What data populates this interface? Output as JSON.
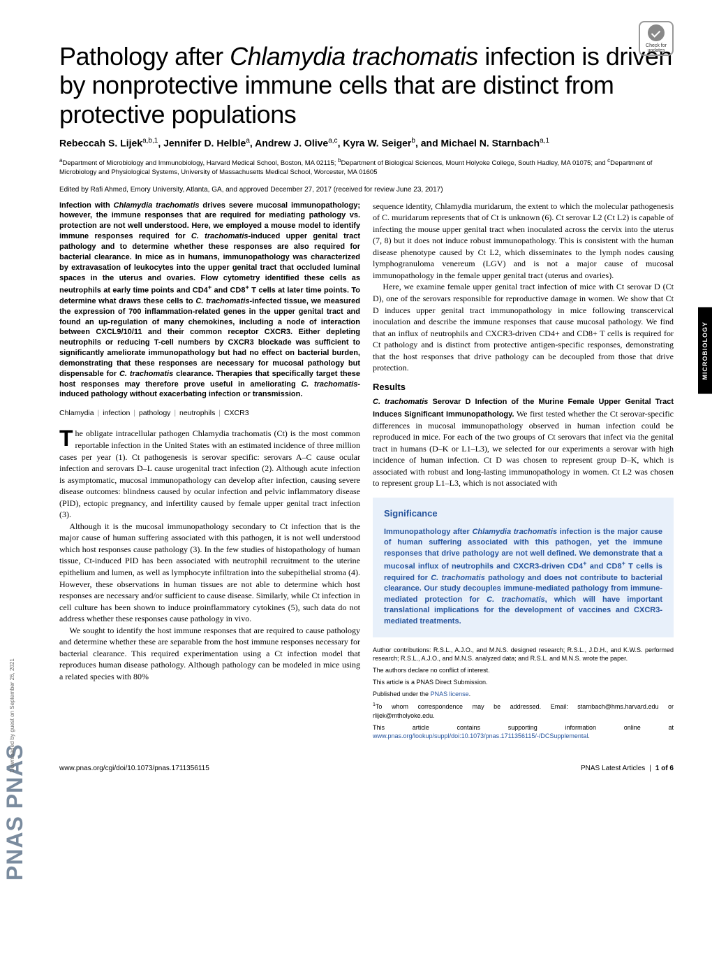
{
  "crossmark": {
    "label": "Check for updates"
  },
  "logo": {
    "text": "PNAS  PNAS"
  },
  "title": {
    "pre": "Pathology after ",
    "italic": "Chlamydia trachomatis",
    "post": " infection is driven by nonprotective immune cells that are distinct from protective populations"
  },
  "authors": {
    "list": "Rebeccah S. Lijek",
    "a1": "a,b,1",
    "n2": ", Jennifer D. Helble",
    "a2": "a",
    "n3": ", Andrew J. Olive",
    "a3": "a,c",
    "n4": ", Kyra W. Seiger",
    "a4": "b",
    "n5": ", and Michael N. Starnbach",
    "a5": "a,1"
  },
  "affiliations": {
    "a": "Department of Microbiology and Immunobiology, Harvard Medical School, Boston, MA 02115; ",
    "b": "Department of Biological Sciences, Mount Holyoke College, South Hadley, MA 01075; and ",
    "c": "Department of Microbiology and Physiological Systems, University of Massachusetts Medical School, Worcester, MA 01605"
  },
  "edited_by": "Edited by Rafi Ahmed, Emory University, Atlanta, GA, and approved December 27, 2017 (received for review June 23, 2017)",
  "abstract": {
    "text": "Infection with Chlamydia trachomatis drives severe mucosal immunopathology; however, the immune responses that are required for mediating pathology vs. protection are not well understood. Here, we employed a mouse model to identify immune responses required for C. trachomatis-induced upper genital tract pathology and to determine whether these responses are also required for bacterial clearance. In mice as in humans, immunopathology was characterized by extravasation of leukocytes into the upper genital tract that occluded luminal spaces in the uterus and ovaries. Flow cytometry identified these cells as neutrophils at early time points and CD4+ and CD8+ T cells at later time points. To determine what draws these cells to C. trachomatis-infected tissue, we measured the expression of 700 inflammation-related genes in the upper genital tract and found an up-regulation of many chemokines, including a node of interaction between CXCL9/10/11 and their common receptor CXCR3. Either depleting neutrophils or reducing T-cell numbers by CXCR3 blockade was sufficient to significantly ameliorate immunopathology but had no effect on bacterial burden, demonstrating that these responses are necessary for mucosal pathology but dispensable for C. trachomatis clearance. Therapies that specifically target these host responses may therefore prove useful in ameliorating C. trachomatis-induced pathology without exacerbating infection or transmission."
  },
  "keywords": [
    "Chlamydia",
    "infection",
    "pathology",
    "neutrophils",
    "CXCR3"
  ],
  "body": {
    "p1": "he obligate intracellular pathogen Chlamydia trachomatis (Ct) is the most common reportable infection in the United States with an estimated incidence of three million cases per year (1). Ct pathogenesis is serovar specific: serovars A–C cause ocular infection and serovars D–L cause urogenital tract infection (2). Although acute infection is asymptomatic, mucosal immunopathology can develop after infection, causing severe disease outcomes: blindness caused by ocular infection and pelvic inflammatory disease (PID), ectopic pregnancy, and infertility caused by female upper genital tract infection (3).",
    "p2": "Although it is the mucosal immunopathology secondary to Ct infection that is the major cause of human suffering associated with this pathogen, it is not well understood which host responses cause pathology (3). In the few studies of histopathology of human tissue, Ct-induced PID has been associated with neutrophil recruitment to the uterine epithelium and lumen, as well as lymphocyte infiltration into the subepithelial stroma (4). However, these observations in human tissues are not able to determine which host responses are necessary and/or sufficient to cause disease. Similarly, while Ct infection in cell culture has been shown to induce proinflammatory cytokines (5), such data do not address whether these responses cause pathology in vivo.",
    "p3": "We sought to identify the host immune responses that are required to cause pathology and determine whether these are separable from the host immune responses necessary for bacterial clearance. This required experimentation using a Ct infection model that reproduces human disease pathology. Although pathology can be modeled in mice using a related species with 80%"
  },
  "col2": {
    "p1": "sequence identity, Chlamydia muridarum, the extent to which the molecular pathogenesis of C. muridarum represents that of Ct is unknown (6). Ct serovar L2 (Ct L2) is capable of infecting the mouse upper genital tract when inoculated across the cervix into the uterus (7, 8) but it does not induce robust immunopathology. This is consistent with the human disease phenotype caused by Ct L2, which disseminates to the lymph nodes causing lymphogranuloma venereum (LGV) and is not a major cause of mucosal immunopathology in the female upper genital tract (uterus and ovaries).",
    "p2": "Here, we examine female upper genital tract infection of mice with Ct serovar D (Ct D), one of the serovars responsible for reproductive damage in women. We show that Ct D induces upper genital tract immunopathology in mice following transcervical inoculation and describe the immune responses that cause mucosal pathology. We find that an influx of neutrophils and CXCR3-driven CD4+ and CD8+ T cells is required for Ct pathology and is distinct from protective antigen-specific responses, demonstrating that the host responses that drive pathology can be decoupled from those that drive protection.",
    "results_head": "Results",
    "sub1_pre": "C. trachomatis",
    "sub1_post": " Serovar D Infection of the Murine Female Upper Genital Tract Induces Significant Immunopathology.",
    "p3": " We first tested whether the Ct serovar-specific differences in mucosal immunopathology observed in human infection could be reproduced in mice. For each of the two groups of Ct serovars that infect via the genital tract in humans (D–K or L1–L3), we selected for our experiments a serovar with high incidence of human infection. Ct D was chosen to represent group D–K, which is associated with robust and long-lasting immunopathology in women. Ct L2 was chosen to represent group L1–L3, which is not associated with"
  },
  "significance": {
    "head": "Significance",
    "text": "Immunopathology after Chlamydia trachomatis infection is the major cause of human suffering associated with this pathogen, yet the immune responses that drive pathology are not well defined. We demonstrate that a mucosal influx of neutrophils and CXCR3-driven CD4+ and CD8+ T cells is required for C. trachomatis pathology and does not contribute to bacterial clearance. Our study decouples immune-mediated pathology from immune-mediated protection for C. trachomatis, which will have important translational implications for the development of vaccines and CXCR3-mediated treatments."
  },
  "footnotes": {
    "contrib": "Author contributions: R.S.L., A.J.O., and M.N.S. designed research; R.S.L., J.D.H., and K.W.S. performed research; R.S.L., A.J.O., and M.N.S. analyzed data; and R.S.L. and M.N.S. wrote the paper.",
    "conflict": "The authors declare no conflict of interest.",
    "submission": "This article is a PNAS Direct Submission.",
    "license_pre": "Published under the ",
    "license_link": "PNAS license",
    "corr": "To whom correspondence may be addressed. Email: starnbach@hms.harvard.edu or rlijek@mtholyoke.edu.",
    "supp_pre": "This article contains supporting information online at ",
    "supp_link": "www.pnas.org/lookup/suppl/doi:10.1073/pnas.1711356115/-/DCSupplemental",
    "supp_post": "."
  },
  "section_label": "MICROBIOLOGY",
  "footer": {
    "left": "www.pnas.org/cgi/doi/10.1073/pnas.1711356115",
    "right_journal": "PNAS Latest Articles",
    "right_pages": "1 of 6"
  },
  "downloaded": "Downloaded by guest on September 26, 2021"
}
